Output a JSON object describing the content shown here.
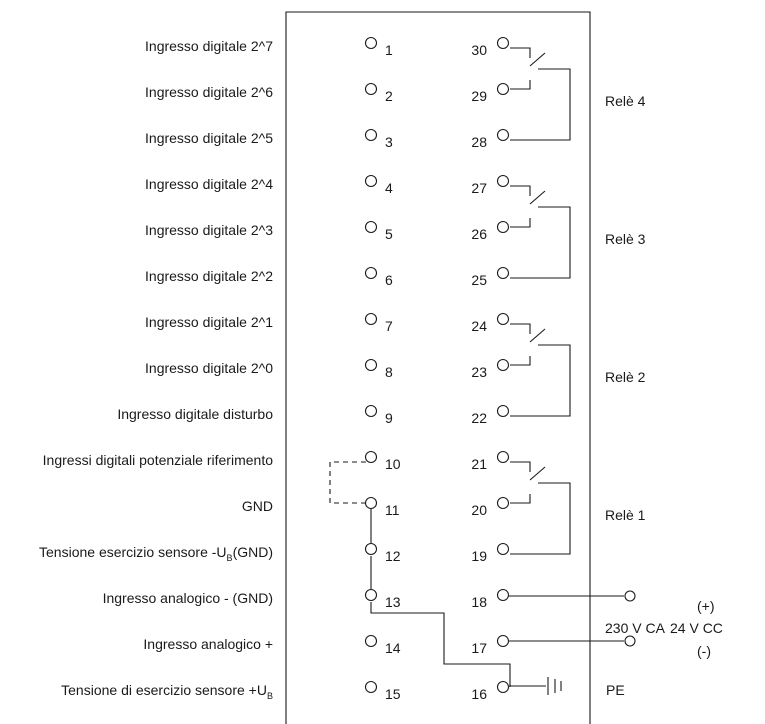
{
  "left_labels": [
    "Ingresso digitale 2^7",
    "Ingresso digitale 2^6",
    "Ingresso digitale 2^5",
    "Ingresso digitale 2^4",
    "Ingresso digitale 2^3",
    "Ingresso digitale 2^2",
    "Ingresso digitale 2^1",
    "Ingresso digitale 2^0",
    "Ingresso digitale disturbo",
    "Ingressi digitali potenziale riferimento",
    "GND",
    "Tensione esercizio sensore -U",
    "Ingresso analogico - (GND)",
    "Ingresso analogico +",
    "Tensione di esercizio sensore +U"
  ],
  "label_subscripts": {
    "sensor_minus": "B",
    "sensor_minus_suffix": "(GND)",
    "sensor_plus": "B"
  },
  "left_terminals": [
    "1",
    "2",
    "3",
    "4",
    "5",
    "6",
    "7",
    "8",
    "9",
    "10",
    "11",
    "12",
    "13",
    "14",
    "15"
  ],
  "right_terminals": [
    "30",
    "29",
    "28",
    "27",
    "26",
    "25",
    "24",
    "23",
    "22",
    "21",
    "20",
    "19",
    "18",
    "17",
    "16"
  ],
  "relays": [
    "Relè 4",
    "Relè 3",
    "Relè 2",
    "Relè 1"
  ],
  "power": {
    "ac": "230 V CA",
    "dc": "24 V CC",
    "plus": "(+)",
    "minus": "(-)",
    "pe": "PE"
  }
}
